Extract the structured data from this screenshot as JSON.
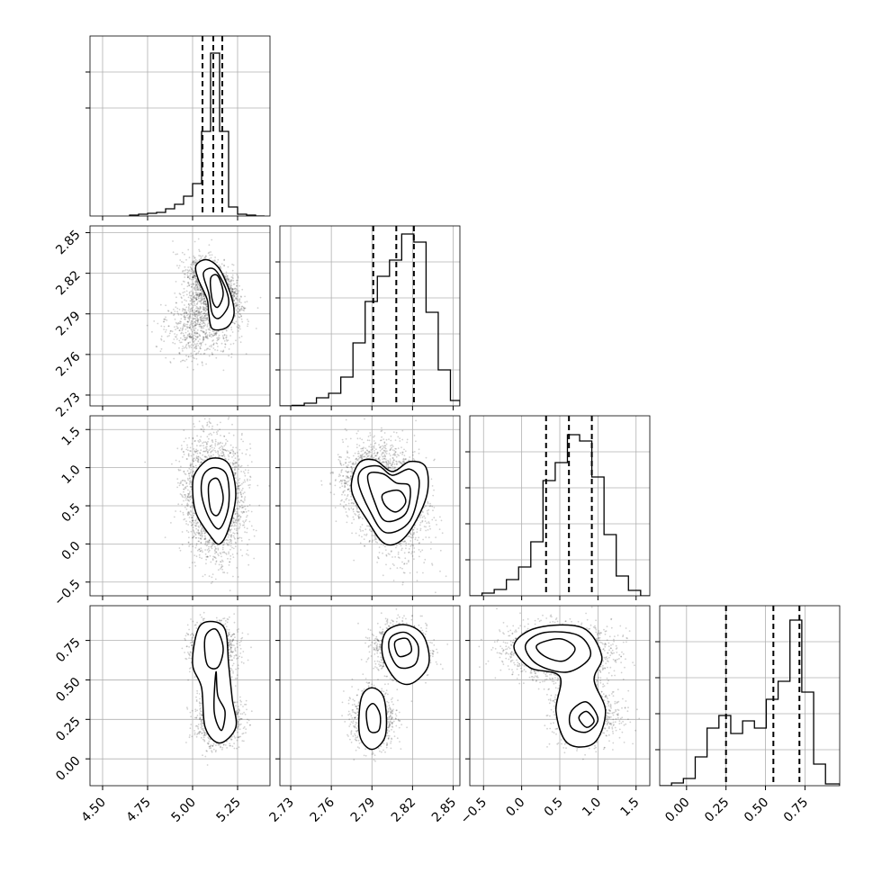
{
  "chart_data": {
    "type": "corner",
    "grid": true,
    "parameters": [
      {
        "ticks": [
          4.5,
          4.75,
          5.0,
          5.25
        ],
        "tick_labels": [
          "4.50",
          "4.75",
          "5.00",
          "5.25"
        ],
        "range": [
          4.43,
          5.43
        ],
        "quantiles": [
          5.055,
          5.115,
          5.165
        ],
        "hist_ticks": [
          0.6,
          0.8
        ],
        "hist_edges": [
          4.65,
          4.7,
          4.75,
          4.8,
          4.85,
          4.9,
          4.95,
          5.0,
          5.05,
          5.1,
          5.15,
          5.2,
          5.25,
          5.3,
          5.35,
          5.4
        ],
        "hist_values": [
          0.005,
          0.01,
          0.015,
          0.02,
          0.04,
          0.065,
          0.11,
          0.18,
          0.47,
          0.905,
          0.47,
          0.05,
          0.01,
          0.005,
          0.0
        ]
      },
      {
        "ticks": [
          2.73,
          2.76,
          2.79,
          2.82,
          2.85
        ],
        "tick_labels": [
          "2.73",
          "2.76",
          "2.79",
          "2.82",
          "2.85"
        ],
        "range": [
          2.722,
          2.855
        ],
        "quantiles": [
          2.791,
          2.808,
          2.821
        ],
        "hist_ticks": [
          0.2,
          0.4,
          0.6,
          0.8
        ],
        "hist_edges": [
          2.722,
          2.731,
          2.74,
          2.749,
          2.758,
          2.767,
          2.776,
          2.785,
          2.794,
          2.803,
          2.812,
          2.821,
          2.83,
          2.839,
          2.848,
          2.855
        ],
        "hist_values": [
          0.0,
          0.003,
          0.015,
          0.045,
          0.07,
          0.16,
          0.35,
          0.58,
          0.72,
          0.81,
          0.955,
          0.91,
          0.52,
          0.2,
          0.03
        ]
      },
      {
        "ticks": [
          -0.5,
          0.0,
          0.5,
          1.0,
          1.5
        ],
        "tick_labels": [
          "−0.5",
          "0.0",
          "0.5",
          "1.0",
          "1.5"
        ],
        "range": [
          -0.68,
          1.68
        ],
        "quantiles": [
          0.32,
          0.62,
          0.92
        ],
        "hist_ticks": [
          0.2,
          0.4,
          0.6,
          0.8
        ],
        "hist_edges": [
          -0.68,
          -0.52,
          -0.36,
          -0.2,
          -0.04,
          0.12,
          0.28,
          0.44,
          0.6,
          0.76,
          0.92,
          1.08,
          1.24,
          1.4,
          1.56,
          1.68
        ],
        "hist_values": [
          0.0,
          0.015,
          0.035,
          0.09,
          0.16,
          0.3,
          0.64,
          0.74,
          0.895,
          0.86,
          0.66,
          0.34,
          0.11,
          0.03,
          0.0
        ]
      },
      {
        "ticks": [
          0.0,
          0.25,
          0.5,
          0.75
        ],
        "tick_labels": [
          "0.00",
          "0.25",
          "0.50",
          "0.75"
        ],
        "range": [
          -0.17,
          0.97
        ],
        "quantiles": [
          0.25,
          0.55,
          0.715
        ],
        "hist_ticks": [
          0.2,
          0.4,
          0.6,
          0.8
        ],
        "hist_edges": [
          -0.17,
          -0.095,
          -0.02,
          0.055,
          0.13,
          0.205,
          0.28,
          0.355,
          0.43,
          0.505,
          0.58,
          0.655,
          0.73,
          0.805,
          0.88,
          0.97
        ],
        "hist_values": [
          0.0,
          0.015,
          0.04,
          0.16,
          0.32,
          0.39,
          0.29,
          0.36,
          0.32,
          0.48,
          0.58,
          0.92,
          0.52,
          0.12,
          0.01
        ]
      }
    ],
    "panels": [
      {
        "x": 0,
        "y": 1,
        "components": [
          {
            "center": [
              5.12,
              2.808
            ],
            "sx": 0.068,
            "sy": 0.0105,
            "rho": -0.45,
            "weight": 0.7
          },
          {
            "center": [
              5.04,
              2.782
            ],
            "sx": 0.095,
            "sy": 0.012,
            "rho": 0.1,
            "weight": 0.3
          }
        ],
        "contours": [
          [
            [
              5.02,
              2.826
            ],
            [
              5.08,
              2.83
            ],
            [
              5.15,
              2.823
            ],
            [
              5.21,
              2.805
            ],
            [
              5.23,
              2.79
            ],
            [
              5.19,
              2.78
            ],
            [
              5.11,
              2.779
            ],
            [
              5.09,
              2.79
            ],
            [
              5.08,
              2.801
            ],
            [
              5.03,
              2.816
            ]
          ],
          [
            [
              5.06,
              2.82
            ],
            [
              5.12,
              2.823
            ],
            [
              5.18,
              2.81
            ],
            [
              5.2,
              2.797
            ],
            [
              5.15,
              2.787
            ],
            [
              5.11,
              2.79
            ],
            [
              5.09,
              2.805
            ]
          ],
          [
            [
              5.1,
              2.816
            ],
            [
              5.14,
              2.818
            ],
            [
              5.17,
              2.805
            ],
            [
              5.14,
              2.795
            ],
            [
              5.11,
              2.8
            ]
          ]
        ]
      },
      {
        "x": 0,
        "y": 2,
        "components": [
          {
            "center": [
              5.12,
              0.6
            ],
            "sx": 0.08,
            "sy": 0.38,
            "rho": -0.1,
            "weight": 1.0
          }
        ],
        "contours": [
          [
            [
              5.02,
              0.95
            ],
            [
              5.1,
              1.12
            ],
            [
              5.2,
              1.05
            ],
            [
              5.24,
              0.65
            ],
            [
              5.2,
              0.2
            ],
            [
              5.15,
              0.0
            ],
            [
              5.1,
              0.1
            ],
            [
              5.02,
              0.4
            ],
            [
              5.0,
              0.75
            ]
          ],
          [
            [
              5.06,
              0.9
            ],
            [
              5.12,
              1.0
            ],
            [
              5.19,
              0.9
            ],
            [
              5.2,
              0.5
            ],
            [
              5.15,
              0.2
            ],
            [
              5.09,
              0.35
            ],
            [
              5.05,
              0.65
            ]
          ],
          [
            [
              5.09,
              0.78
            ],
            [
              5.14,
              0.85
            ],
            [
              5.17,
              0.6
            ],
            [
              5.14,
              0.38
            ],
            [
              5.1,
              0.45
            ]
          ]
        ]
      },
      {
        "x": 1,
        "y": 2,
        "components": [
          {
            "center": [
              2.805,
              0.58
            ],
            "sx": 0.0125,
            "sy": 0.35,
            "rho": -0.2,
            "weight": 0.72
          },
          {
            "center": [
              2.785,
              0.85
            ],
            "sx": 0.011,
            "sy": 0.22,
            "rho": 0.1,
            "weight": 0.28
          }
        ],
        "contours": [
          [
            [
              2.78,
              1.05
            ],
            [
              2.792,
              1.1
            ],
            [
              2.805,
              0.95
            ],
            [
              2.818,
              1.08
            ],
            [
              2.83,
              1.0
            ],
            [
              2.83,
              0.6
            ],
            [
              2.815,
              0.1
            ],
            [
              2.8,
              0.0
            ],
            [
              2.787,
              0.3
            ],
            [
              2.775,
              0.7
            ]
          ],
          [
            [
              2.783,
              0.98
            ],
            [
              2.795,
              1.02
            ],
            [
              2.805,
              0.9
            ],
            [
              2.818,
              0.98
            ],
            [
              2.825,
              0.8
            ],
            [
              2.818,
              0.3
            ],
            [
              2.8,
              0.15
            ],
            [
              2.788,
              0.45
            ],
            [
              2.78,
              0.8
            ]
          ],
          [
            [
              2.787,
              0.9
            ],
            [
              2.798,
              0.92
            ],
            [
              2.808,
              0.8
            ],
            [
              2.818,
              0.75
            ],
            [
              2.815,
              0.4
            ],
            [
              2.8,
              0.3
            ],
            [
              2.792,
              0.55
            ]
          ],
          [
            [
              2.798,
              0.65
            ],
            [
              2.81,
              0.7
            ],
            [
              2.815,
              0.55
            ],
            [
              2.808,
              0.42
            ],
            [
              2.8,
              0.5
            ]
          ]
        ]
      },
      {
        "x": 0,
        "y": 3,
        "components": [
          {
            "center": [
              5.11,
              0.7
            ],
            "sx": 0.06,
            "sy": 0.075,
            "rho": 0.0,
            "weight": 0.6
          },
          {
            "center": [
              5.15,
              0.25
            ],
            "sx": 0.06,
            "sy": 0.085,
            "rho": 0.0,
            "weight": 0.4
          }
        ],
        "contours": [
          [
            [
              5.03,
              0.82
            ],
            [
              5.1,
              0.87
            ],
            [
              5.18,
              0.82
            ],
            [
              5.2,
              0.6
            ],
            [
              5.22,
              0.38
            ],
            [
              5.24,
              0.2
            ],
            [
              5.15,
              0.1
            ],
            [
              5.07,
              0.2
            ],
            [
              5.05,
              0.45
            ],
            [
              5.0,
              0.6
            ]
          ],
          [
            [
              5.07,
              0.77
            ],
            [
              5.13,
              0.82
            ],
            [
              5.17,
              0.7
            ],
            [
              5.14,
              0.58
            ],
            [
              5.08,
              0.6
            ]
          ],
          [
            [
              5.13,
              0.55
            ],
            [
              5.14,
              0.4
            ],
            [
              5.18,
              0.3
            ],
            [
              5.16,
              0.18
            ],
            [
              5.12,
              0.3
            ]
          ]
        ]
      },
      {
        "x": 1,
        "y": 3,
        "components": [
          {
            "center": [
              2.812,
              0.7
            ],
            "sx": 0.0095,
            "sy": 0.075,
            "rho": 0.0,
            "weight": 0.62
          },
          {
            "center": [
              2.791,
              0.25
            ],
            "sx": 0.0075,
            "sy": 0.09,
            "rho": 0.0,
            "weight": 0.38
          }
        ],
        "contours": [
          [
            [
              2.8,
              0.8
            ],
            [
              2.814,
              0.85
            ],
            [
              2.828,
              0.78
            ],
            [
              2.832,
              0.6
            ],
            [
              2.82,
              0.48
            ],
            [
              2.808,
              0.5
            ],
            [
              2.798,
              0.65
            ]
          ],
          [
            [
              2.804,
              0.77
            ],
            [
              2.815,
              0.8
            ],
            [
              2.824,
              0.72
            ],
            [
              2.822,
              0.6
            ],
            [
              2.81,
              0.58
            ],
            [
              2.803,
              0.68
            ]
          ],
          [
            [
              2.807,
              0.74
            ],
            [
              2.816,
              0.76
            ],
            [
              2.819,
              0.68
            ],
            [
              2.81,
              0.65
            ]
          ],
          [
            [
              2.782,
              0.38
            ],
            [
              2.79,
              0.45
            ],
            [
              2.799,
              0.38
            ],
            [
              2.8,
              0.15
            ],
            [
              2.79,
              0.06
            ],
            [
              2.781,
              0.15
            ]
          ],
          [
            [
              2.786,
              0.3
            ],
            [
              2.791,
              0.35
            ],
            [
              2.796,
              0.28
            ],
            [
              2.795,
              0.18
            ],
            [
              2.788,
              0.18
            ]
          ]
        ]
      },
      {
        "x": 2,
        "y": 3,
        "components": [
          {
            "center": [
              0.5,
              0.68
            ],
            "sx": 0.35,
            "sy": 0.085,
            "rho": 0.0,
            "weight": 0.55
          },
          {
            "center": [
              0.85,
              0.25
            ],
            "sx": 0.22,
            "sy": 0.085,
            "rho": 0.0,
            "weight": 0.3
          },
          {
            "center": [
              0.75,
              0.45
            ],
            "sx": 0.22,
            "sy": 0.1,
            "rho": 0.0,
            "weight": 0.15
          }
        ],
        "contours": [
          [
            [
              -0.1,
              0.72
            ],
            [
              0.2,
              0.83
            ],
            [
              0.8,
              0.83
            ],
            [
              1.05,
              0.65
            ],
            [
              0.95,
              0.5
            ],
            [
              1.1,
              0.3
            ],
            [
              0.95,
              0.1
            ],
            [
              0.6,
              0.1
            ],
            [
              0.45,
              0.3
            ],
            [
              0.5,
              0.52
            ],
            [
              0.1,
              0.58
            ]
          ],
          [
            [
              0.05,
              0.72
            ],
            [
              0.3,
              0.8
            ],
            [
              0.75,
              0.78
            ],
            [
              0.9,
              0.65
            ],
            [
              0.6,
              0.55
            ],
            [
              0.2,
              0.6
            ]
          ],
          [
            [
              0.2,
              0.72
            ],
            [
              0.5,
              0.76
            ],
            [
              0.7,
              0.7
            ],
            [
              0.55,
              0.62
            ],
            [
              0.3,
              0.65
            ]
          ],
          [
            [
              0.65,
              0.3
            ],
            [
              0.85,
              0.36
            ],
            [
              1.0,
              0.25
            ],
            [
              0.85,
              0.17
            ],
            [
              0.65,
              0.2
            ]
          ],
          [
            [
              0.75,
              0.26
            ],
            [
              0.85,
              0.3
            ],
            [
              0.95,
              0.24
            ],
            [
              0.85,
              0.2
            ]
          ]
        ]
      }
    ]
  }
}
